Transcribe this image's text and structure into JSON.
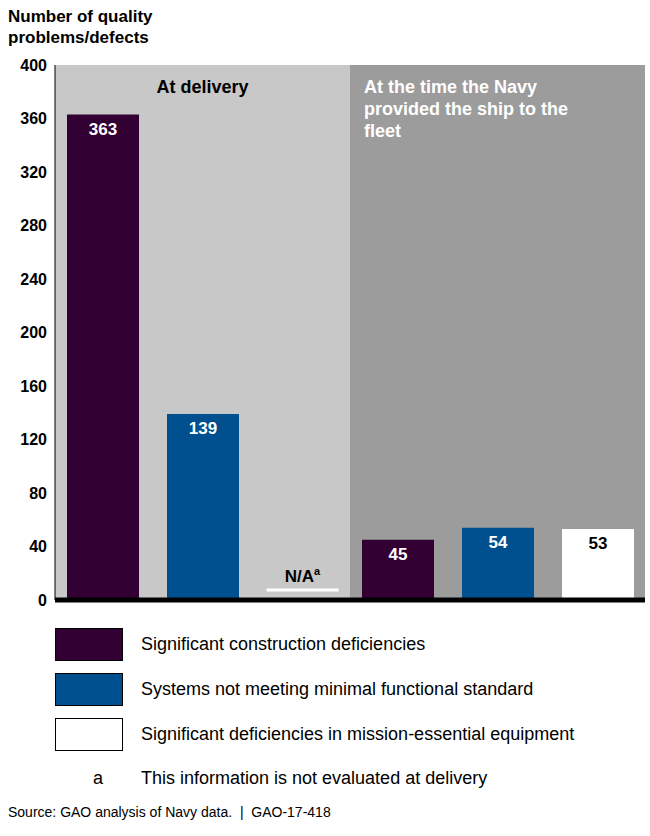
{
  "chart_data": {
    "type": "bar",
    "y_label": "Number of quality problems/defects",
    "categories": [
      "At delivery",
      "At the time the Navy provided the ship to the fleet"
    ],
    "series": [
      {
        "name": "Significant construction deficiencies",
        "color": "#330033",
        "values": [
          363,
          45
        ]
      },
      {
        "name": "Systems not meeting minimal functional standard",
        "color": "#00508f",
        "values": [
          139,
          54
        ]
      },
      {
        "name": "Significant deficiencies in mission-essential equipment",
        "color": "#ffffff",
        "values": [
          null,
          53
        ]
      }
    ],
    "ylim": [
      0,
      400
    ],
    "yticks": [
      0,
      40,
      80,
      120,
      160,
      200,
      240,
      280,
      320,
      360,
      400
    ],
    "grid": false,
    "data_labels": true,
    "legend": "bottom",
    "missing_label": "N/A",
    "footnote_mark": "a",
    "footnote": "This information is not evaluated at delivery",
    "source": "Source: GAO analysis of Navy data.  |  GAO-17-418"
  }
}
